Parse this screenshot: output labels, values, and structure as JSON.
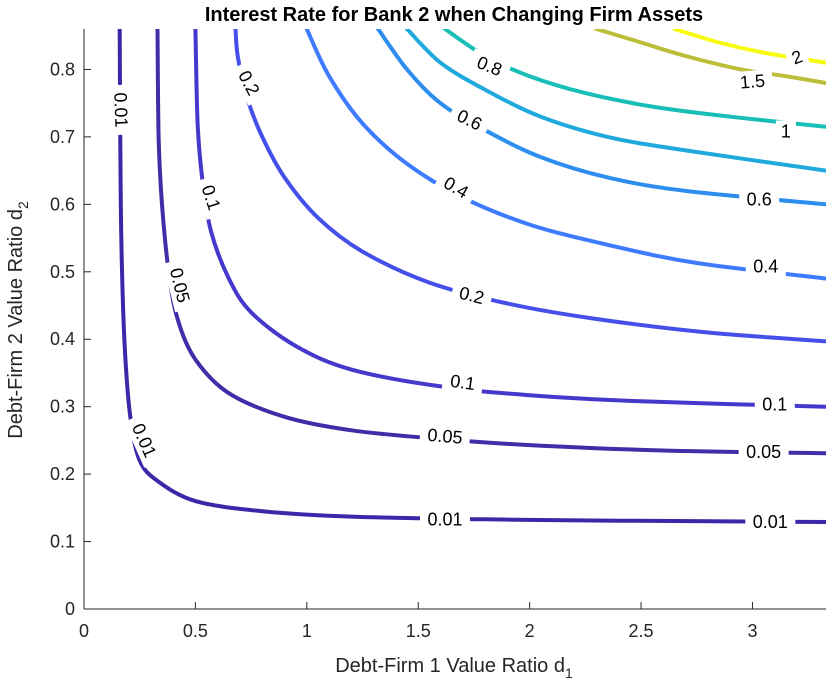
{
  "chart_data": {
    "type": "contour",
    "title": "Interest Rate for Bank 2 when Changing Firm Assets",
    "xlabel": "Debt-Firm 1 Value Ratio d",
    "xlabel_sub": "1",
    "ylabel": "Debt-Firm 2 Value Ratio d",
    "ylabel_sub": "2",
    "xlim": [
      0,
      3.33
    ],
    "ylim": [
      0,
      0.86
    ],
    "x_ticks": [
      0,
      0.5,
      1,
      1.5,
      2,
      2.5,
      3
    ],
    "x_tick_labels": [
      "0",
      "0.5",
      "1",
      "1.5",
      "2",
      "2.5",
      "3"
    ],
    "y_ticks": [
      0,
      0.1,
      0.2,
      0.3,
      0.4,
      0.5,
      0.6,
      0.7,
      0.8
    ],
    "y_tick_labels": [
      "0",
      "0.1",
      "0.2",
      "0.3",
      "0.4",
      "0.5",
      "0.6",
      "0.7",
      "0.8"
    ],
    "grid": false,
    "levels": [
      {
        "value": 0.01,
        "color": "#3e26a8",
        "points": [
          [
            0.16,
            0.86
          ],
          [
            0.165,
            0.6
          ],
          [
            0.175,
            0.45
          ],
          [
            0.19,
            0.35
          ],
          [
            0.21,
            0.28
          ],
          [
            0.25,
            0.22
          ],
          [
            0.33,
            0.19
          ],
          [
            0.5,
            0.16
          ],
          [
            0.8,
            0.145
          ],
          [
            1.2,
            0.137
          ],
          [
            1.8,
            0.133
          ],
          [
            2.4,
            0.131
          ],
          [
            3.33,
            0.129
          ]
        ],
        "labels": [
          {
            "text": "0.01",
            "x": 0.165,
            "y": 0.74,
            "angle": 88
          },
          {
            "text": "0.01",
            "x": 0.27,
            "y": 0.25,
            "angle": 66
          },
          {
            "text": "0.01",
            "x": 1.62,
            "y": 0.133,
            "angle": 0
          },
          {
            "text": "0.01",
            "x": 3.08,
            "y": 0.129,
            "angle": 0
          }
        ]
      },
      {
        "value": 0.05,
        "color": "#402ea8",
        "points": [
          [
            0.33,
            0.86
          ],
          [
            0.335,
            0.7
          ],
          [
            0.35,
            0.6
          ],
          [
            0.38,
            0.5
          ],
          [
            0.42,
            0.43
          ],
          [
            0.5,
            0.37
          ],
          [
            0.65,
            0.32
          ],
          [
            0.9,
            0.285
          ],
          [
            1.2,
            0.265
          ],
          [
            1.6,
            0.252
          ],
          [
            2.0,
            0.243
          ],
          [
            2.6,
            0.235
          ],
          [
            3.33,
            0.231
          ]
        ],
        "labels": [
          {
            "text": "0.05",
            "x": 0.43,
            "y": 0.48,
            "angle": 76
          },
          {
            "text": "0.05",
            "x": 1.62,
            "y": 0.256,
            "angle": 5
          },
          {
            "text": "0.05",
            "x": 3.05,
            "y": 0.233,
            "angle": 0
          }
        ]
      },
      {
        "value": 0.1,
        "color": "#4538cb",
        "points": [
          [
            0.5,
            0.86
          ],
          [
            0.51,
            0.72
          ],
          [
            0.53,
            0.64
          ],
          [
            0.57,
            0.56
          ],
          [
            0.65,
            0.49
          ],
          [
            0.75,
            0.44
          ],
          [
            0.95,
            0.39
          ],
          [
            1.2,
            0.355
          ],
          [
            1.6,
            0.33
          ],
          [
            2.0,
            0.317
          ],
          [
            2.5,
            0.308
          ],
          [
            3.33,
            0.3
          ]
        ],
        "labels": [
          {
            "text": "0.1",
            "x": 0.57,
            "y": 0.61,
            "angle": 72
          },
          {
            "text": "0.1",
            "x": 1.7,
            "y": 0.336,
            "angle": 8
          },
          {
            "text": "0.1",
            "x": 3.1,
            "y": 0.303,
            "angle": 0
          }
        ]
      },
      {
        "value": 0.2,
        "color": "#4450e9",
        "points": [
          [
            0.68,
            0.86
          ],
          [
            0.69,
            0.82
          ],
          [
            0.73,
            0.76
          ],
          [
            0.8,
            0.7
          ],
          [
            0.9,
            0.64
          ],
          [
            1.05,
            0.58
          ],
          [
            1.25,
            0.53
          ],
          [
            1.55,
            0.484
          ],
          [
            1.9,
            0.453
          ],
          [
            2.3,
            0.43
          ],
          [
            2.8,
            0.41
          ],
          [
            3.33,
            0.397
          ]
        ],
        "labels": [
          {
            "text": "0.2",
            "x": 0.74,
            "y": 0.78,
            "angle": 62
          },
          {
            "text": "0.2",
            "x": 1.74,
            "y": 0.465,
            "angle": 14
          }
        ]
      },
      {
        "value": 0.4,
        "color": "#3f7bff",
        "points": [
          [
            1.0,
            0.86
          ],
          [
            1.1,
            0.79
          ],
          [
            1.25,
            0.72
          ],
          [
            1.45,
            0.66
          ],
          [
            1.7,
            0.61
          ],
          [
            2.0,
            0.57
          ],
          [
            2.35,
            0.54
          ],
          [
            2.75,
            0.513
          ],
          [
            3.33,
            0.49
          ]
        ],
        "labels": [
          {
            "text": "0.4",
            "x": 1.67,
            "y": 0.625,
            "angle": 30
          },
          {
            "text": "0.4",
            "x": 3.06,
            "y": 0.508,
            "angle": 0
          }
        ]
      },
      {
        "value": 0.6,
        "color": "#2e8ef0",
        "points": [
          [
            1.32,
            0.86
          ],
          [
            1.45,
            0.8
          ],
          [
            1.6,
            0.75
          ],
          [
            1.8,
            0.71
          ],
          [
            2.05,
            0.67
          ],
          [
            2.35,
            0.64
          ],
          [
            2.7,
            0.62
          ],
          [
            3.33,
            0.6
          ]
        ],
        "labels": [
          {
            "text": "0.6",
            "x": 1.73,
            "y": 0.725,
            "angle": 26
          },
          {
            "text": "0.6",
            "x": 3.03,
            "y": 0.607,
            "angle": 0
          }
        ]
      },
      {
        "value": 0.8,
        "color": "#1fa9dd",
        "points": [
          [
            1.45,
            0.86
          ],
          [
            1.6,
            0.81
          ],
          [
            1.8,
            0.77
          ],
          [
            2.05,
            0.73
          ],
          [
            2.35,
            0.7
          ],
          [
            2.7,
            0.68
          ],
          [
            3.33,
            0.65
          ]
        ],
        "labels": [
          {
            "text": "0.8",
            "x": 1.82,
            "y": 0.805,
            "angle": 22
          }
        ]
      },
      {
        "value": 1,
        "color": "#19bfb7",
        "points": [
          [
            1.62,
            0.86
          ],
          [
            1.8,
            0.82
          ],
          [
            2.0,
            0.79
          ],
          [
            2.25,
            0.765
          ],
          [
            2.55,
            0.745
          ],
          [
            2.9,
            0.73
          ],
          [
            3.33,
            0.715
          ]
        ],
        "labels": [
          {
            "text": "1",
            "x": 3.15,
            "y": 0.708,
            "angle": 0
          }
        ]
      },
      {
        "value": 1.5,
        "color": "#bcbd38",
        "points": [
          [
            2.3,
            0.86
          ],
          [
            2.5,
            0.84
          ],
          [
            2.7,
            0.82
          ],
          [
            2.95,
            0.8
          ],
          [
            3.15,
            0.79
          ],
          [
            3.33,
            0.78
          ]
        ],
        "labels": [
          {
            "text": "1.5",
            "x": 3.0,
            "y": 0.782,
            "angle": -5
          }
        ]
      },
      {
        "value": 2,
        "color": "#f9fb0e",
        "points": [
          [
            2.65,
            0.86
          ],
          [
            2.85,
            0.84
          ],
          [
            3.05,
            0.825
          ],
          [
            3.33,
            0.81
          ]
        ],
        "labels": [
          {
            "text": "2",
            "x": 3.2,
            "y": 0.818,
            "angle": -20
          }
        ]
      }
    ]
  }
}
